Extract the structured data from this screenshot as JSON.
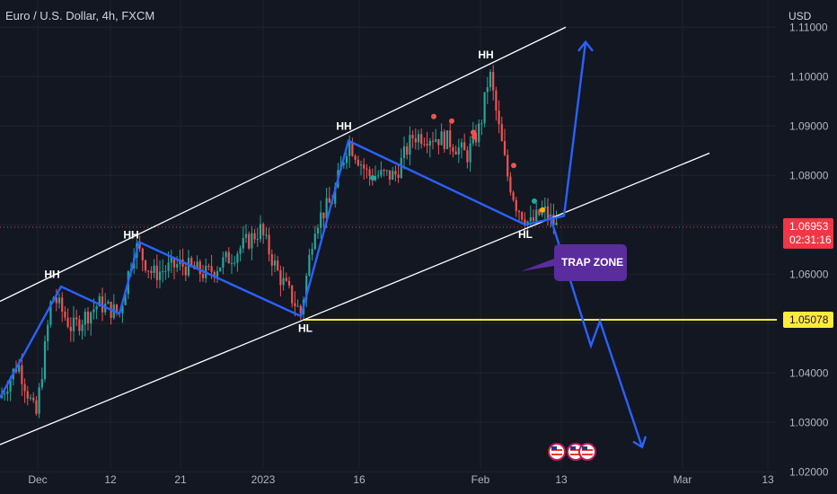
{
  "header": {
    "title": "Euro / U.S. Dollar, 4h, FXCM"
  },
  "price_axis": {
    "currency": "USD",
    "ticks": [
      "1.11000",
      "1.10000",
      "1.09000",
      "1.08000",
      "1.06000",
      "1.04000",
      "1.03000",
      "1.02000"
    ]
  },
  "time_axis": {
    "ticks": [
      {
        "label": "Dec",
        "bar": 42
      },
      {
        "label": "12",
        "bar": 123
      },
      {
        "label": "21",
        "bar": 201
      },
      {
        "label": "2023",
        "bar": 293
      },
      {
        "label": "16",
        "bar": 400
      },
      {
        "label": "Feb",
        "bar": 535
      },
      {
        "label": "13",
        "bar": 625
      },
      {
        "label": "Mar",
        "bar": 760
      },
      {
        "label": "13",
        "bar": 855
      }
    ]
  },
  "current_price": {
    "value": "1.06953",
    "countdown": "02:31:16",
    "color": "#f23645"
  },
  "horizontal_line": {
    "value": "1.05078",
    "price": 1.05078,
    "color": "#ffeb3b"
  },
  "annotations": {
    "trap_zone": "TRAP ZONE",
    "swings": [
      {
        "text": "HH",
        "bar": 58,
        "price": 1.0585,
        "pos": "above"
      },
      {
        "text": "HH",
        "bar": 146,
        "price": 1.0665,
        "pos": "above"
      },
      {
        "text": "HL",
        "bar": 340,
        "price": 1.0505,
        "pos": "below"
      },
      {
        "text": "HH",
        "bar": 383,
        "price": 1.0885,
        "pos": "above"
      },
      {
        "text": "HH",
        "bar": 541,
        "price": 1.103,
        "pos": "above"
      },
      {
        "text": "HL",
        "bar": 585,
        "price": 1.0695,
        "pos": "below"
      }
    ]
  },
  "colors": {
    "background": "#131722",
    "up": "#26a69a",
    "down": "#ef5350",
    "path": "#2962ff",
    "channel": "#ffffff",
    "trap": "#5b2c9e"
  },
  "chart_data": {
    "type": "candlestick",
    "symbol": "Euro / U.S. Dollar",
    "interval": "4h",
    "ylim": [
      1.0155,
      1.1155
    ],
    "channel_lines": [
      {
        "points": [
          [
            0,
            1.0545
          ],
          [
            630,
            1.11
          ]
        ]
      },
      {
        "points": [
          [
            0,
            1.0255
          ],
          [
            790,
            1.0845
          ]
        ]
      }
    ],
    "swing_path": [
      [
        0,
        1.035
      ],
      [
        68,
        1.0575
      ],
      [
        133,
        1.052
      ],
      [
        155,
        1.0665
      ],
      [
        335,
        1.0515
      ],
      [
        388,
        1.087
      ],
      [
        585,
        1.07
      ],
      [
        628,
        1.0718
      ],
      [
        652,
        1.107
      ]
    ],
    "projection_path": [
      [
        612,
        1.072
      ],
      [
        658,
        1.0455
      ],
      [
        668,
        1.0505
      ],
      [
        715,
        1.025
      ]
    ],
    "close_path": [
      [
        0,
        1.035
      ],
      [
        20,
        1.042
      ],
      [
        40,
        1.031
      ],
      [
        58,
        1.056
      ],
      [
        80,
        1.049
      ],
      [
        110,
        1.054
      ],
      [
        133,
        1.052
      ],
      [
        150,
        1.066
      ],
      [
        170,
        1.06
      ],
      [
        200,
        1.062
      ],
      [
        230,
        1.06
      ],
      [
        260,
        1.064
      ],
      [
        290,
        1.069
      ],
      [
        310,
        1.06
      ],
      [
        335,
        1.052
      ],
      [
        350,
        1.07
      ],
      [
        370,
        1.075
      ],
      [
        388,
        1.087
      ],
      [
        410,
        1.08
      ],
      [
        440,
        1.08
      ],
      [
        460,
        1.088
      ],
      [
        480,
        1.088
      ],
      [
        500,
        1.087
      ],
      [
        520,
        1.084
      ],
      [
        535,
        1.09
      ],
      [
        545,
        1.101
      ],
      [
        555,
        1.09
      ],
      [
        565,
        1.08
      ],
      [
        575,
        1.074
      ],
      [
        590,
        1.07
      ],
      [
        605,
        1.073
      ],
      [
        620,
        1.0695
      ]
    ],
    "price_ticks": [
      1.11,
      1.1,
      1.09,
      1.08,
      1.06,
      1.04,
      1.03,
      1.02
    ]
  }
}
